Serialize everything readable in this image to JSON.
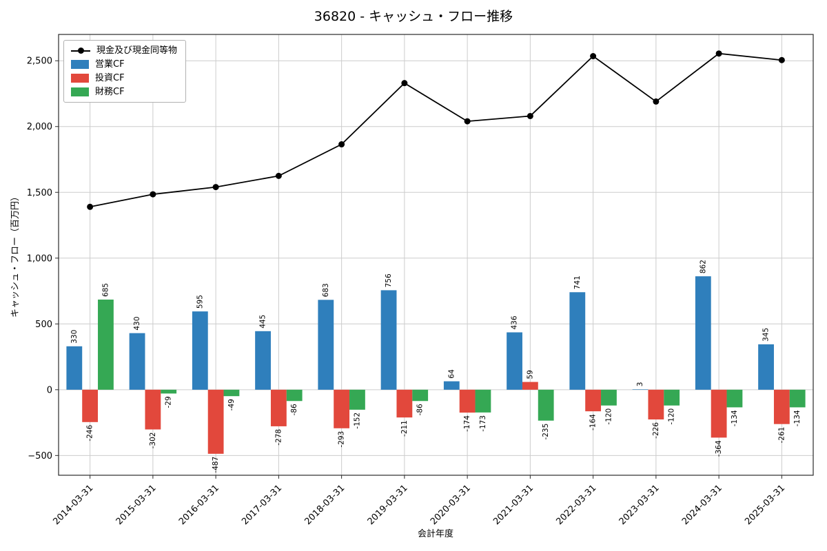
{
  "chart_data": {
    "type": "bar",
    "title": "36820 - キャッシュ・フロー推移",
    "xlabel": "会計年度",
    "ylabel": "キャッシュ・フロー（百万円）",
    "categories": [
      "2014-03-31",
      "2015-03-31",
      "2016-03-31",
      "2017-03-31",
      "2018-03-31",
      "2019-03-31",
      "2020-03-31",
      "2021-03-31",
      "2022-03-31",
      "2023-03-31",
      "2024-03-31",
      "2025-03-31"
    ],
    "series": [
      {
        "name": "営業CF",
        "slug": "operating-cf",
        "type": "bar",
        "color": "#2f7fbc",
        "values": [
          330,
          430,
          595,
          445,
          683,
          756,
          64,
          436,
          741,
          3,
          862,
          345
        ]
      },
      {
        "name": "投資CF",
        "slug": "investing-cf",
        "type": "bar",
        "color": "#e2483c",
        "values": [
          -246,
          -302,
          -487,
          -278,
          -293,
          -211,
          -174,
          59,
          -164,
          -226,
          -364,
          -261
        ]
      },
      {
        "name": "財務CF",
        "slug": "financing-cf",
        "type": "bar",
        "color": "#35a854",
        "values": [
          685,
          -29,
          -49,
          -86,
          -152,
          -86,
          -173,
          -235,
          -120,
          -120,
          -134,
          -134
        ]
      },
      {
        "name": "現金及び現金同等物",
        "slug": "cash-and-equivalents",
        "type": "line",
        "color": "#000000",
        "values": [
          1390,
          1485,
          1540,
          1625,
          1865,
          2330,
          2040,
          2080,
          2535,
          2190,
          2555,
          2505
        ]
      }
    ],
    "ylim": [
      -650,
      2700
    ],
    "yticks": [
      -500,
      0,
      500,
      1000,
      1500,
      2000,
      2500
    ],
    "grid": true,
    "legend_position": "upper left",
    "marker": "o"
  }
}
